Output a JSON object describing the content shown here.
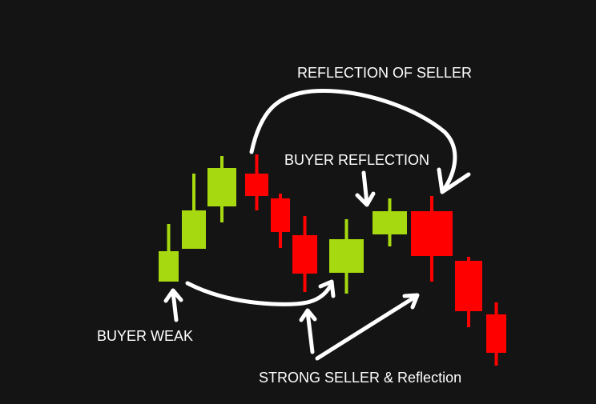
{
  "colors": {
    "background": "#141414",
    "buyer": "#a6d90f",
    "seller": "#ff0000",
    "annotation": "#ffffff"
  },
  "annotations": {
    "reflection_of_seller": "REFLECTION OF SELLER",
    "buyer_reflection": "BUYER REFLECTION",
    "buyer_weak": "BUYER WEAK",
    "strong_seller": "STRONG SELLER & Reflection"
  },
  "chart_data": {
    "type": "candlestick",
    "axes_visible": false,
    "grid": false,
    "candles": [
      {
        "dir": "up",
        "open": 153,
        "close": 191,
        "high": 225,
        "low": 153
      },
      {
        "dir": "up",
        "open": 194,
        "close": 242,
        "high": 288,
        "low": 194
      },
      {
        "dir": "up",
        "open": 247,
        "close": 295,
        "high": 310,
        "low": 227
      },
      {
        "dir": "down",
        "open": 288,
        "close": 260,
        "high": 312,
        "low": 242
      },
      {
        "dir": "down",
        "open": 257,
        "close": 215,
        "high": 263,
        "low": 195
      },
      {
        "dir": "down",
        "open": 211,
        "close": 163,
        "high": 235,
        "low": 140
      },
      {
        "dir": "up",
        "open": 164,
        "close": 206,
        "high": 231,
        "low": 138
      },
      {
        "dir": "up",
        "open": 212,
        "close": 241,
        "high": 257,
        "low": 197
      },
      {
        "dir": "down",
        "open": 241,
        "close": 185,
        "high": 260,
        "low": 153
      },
      {
        "dir": "down",
        "open": 179,
        "close": 116,
        "high": 184,
        "low": 96
      },
      {
        "dir": "down",
        "open": 112,
        "close": 64,
        "high": 127,
        "low": 48
      }
    ]
  }
}
